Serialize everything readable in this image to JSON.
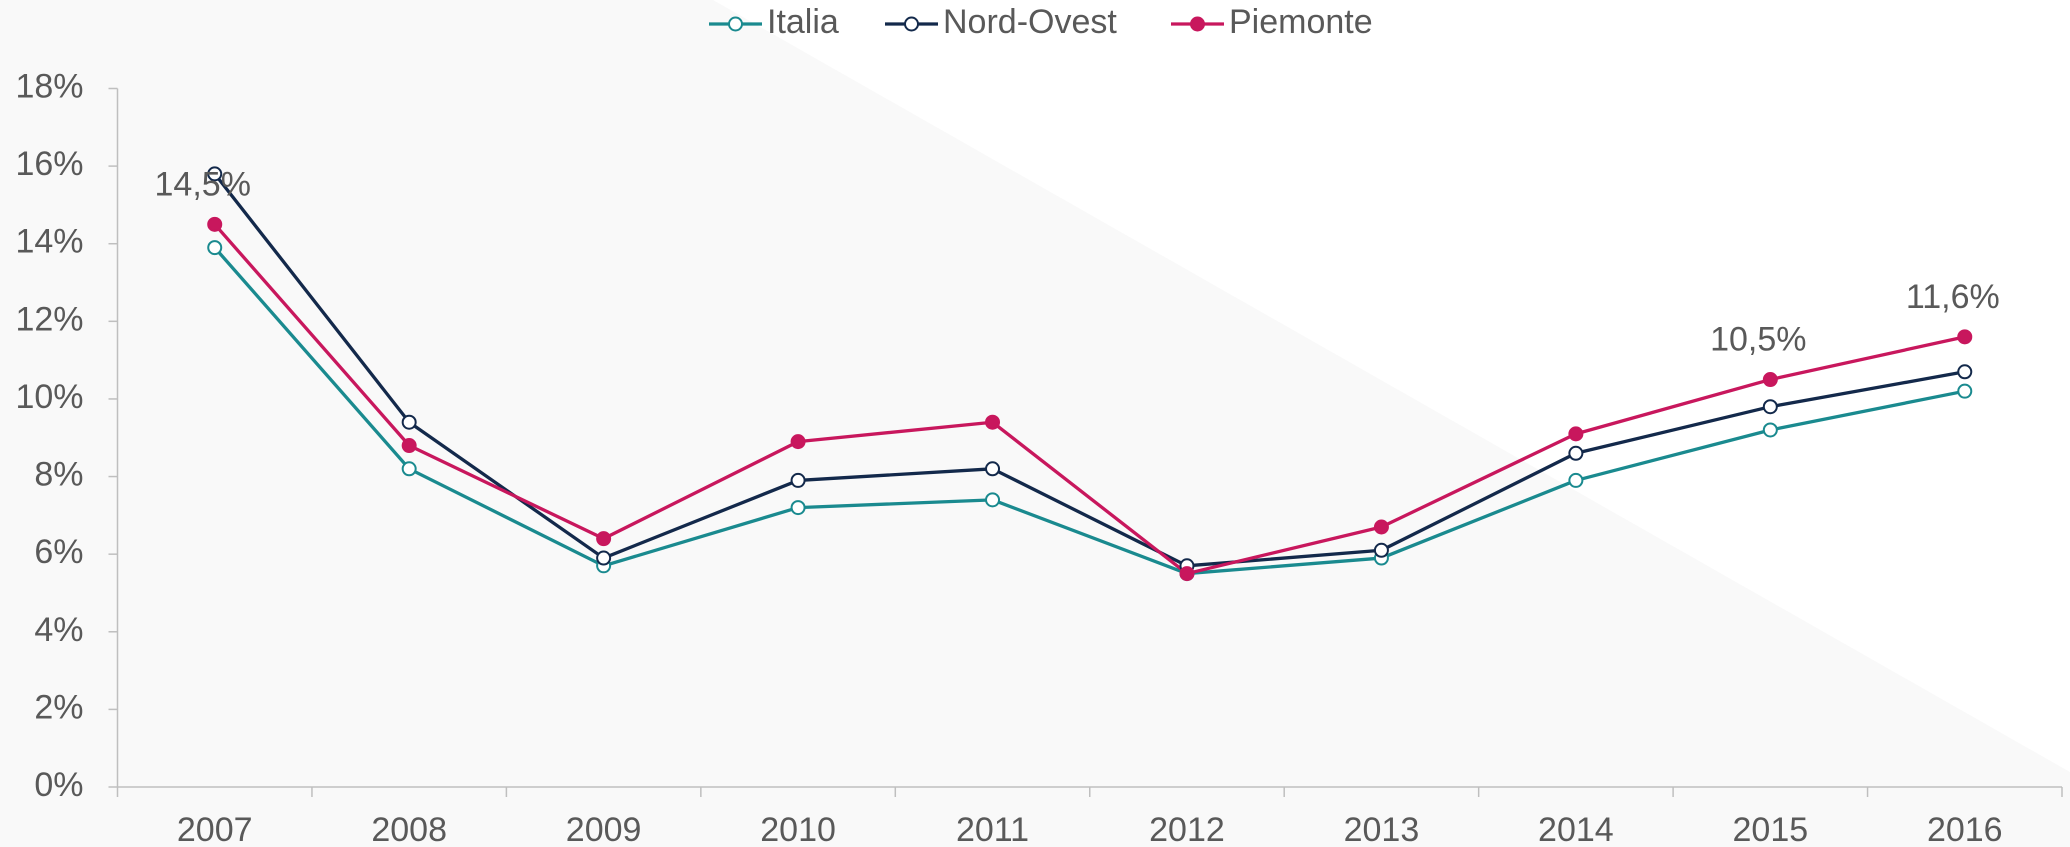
{
  "chart_data": {
    "type": "line",
    "categories": [
      "2007",
      "2008",
      "2009",
      "2010",
      "2011",
      "2012",
      "2013",
      "2014",
      "2015",
      "2016"
    ],
    "series": [
      {
        "name": "Italia",
        "color": "#1a8a8f",
        "marker": "open",
        "values": [
          13.9,
          8.2,
          5.7,
          7.2,
          7.4,
          5.5,
          5.9,
          7.9,
          9.2,
          10.2
        ]
      },
      {
        "name": "Nord-Ovest",
        "color": "#13294b",
        "marker": "open",
        "values": [
          15.8,
          9.4,
          5.9,
          7.9,
          8.2,
          5.7,
          6.1,
          8.6,
          9.8,
          10.7
        ]
      },
      {
        "name": "Piemonte",
        "color": "#c8175d",
        "marker": "filled",
        "values": [
          14.5,
          8.8,
          6.4,
          8.9,
          9.4,
          5.5,
          6.7,
          9.1,
          10.5,
          11.6
        ],
        "value_labels": [
          "14,5%",
          null,
          null,
          null,
          null,
          null,
          null,
          null,
          "10,5%",
          "11,6%"
        ]
      }
    ],
    "ylim": [
      0,
      18
    ],
    "yticks": [
      {
        "value": 0,
        "label": "0%"
      },
      {
        "value": 2,
        "label": "2%"
      },
      {
        "value": 4,
        "label": "4%"
      },
      {
        "value": 6,
        "label": "6%"
      },
      {
        "value": 8,
        "label": "8%"
      },
      {
        "value": 10,
        "label": "10%"
      },
      {
        "value": 12,
        "label": "12%"
      },
      {
        "value": 14,
        "label": "14%"
      },
      {
        "value": 16,
        "label": "16%"
      },
      {
        "value": 18,
        "label": "18%"
      }
    ],
    "legend": "top"
  }
}
